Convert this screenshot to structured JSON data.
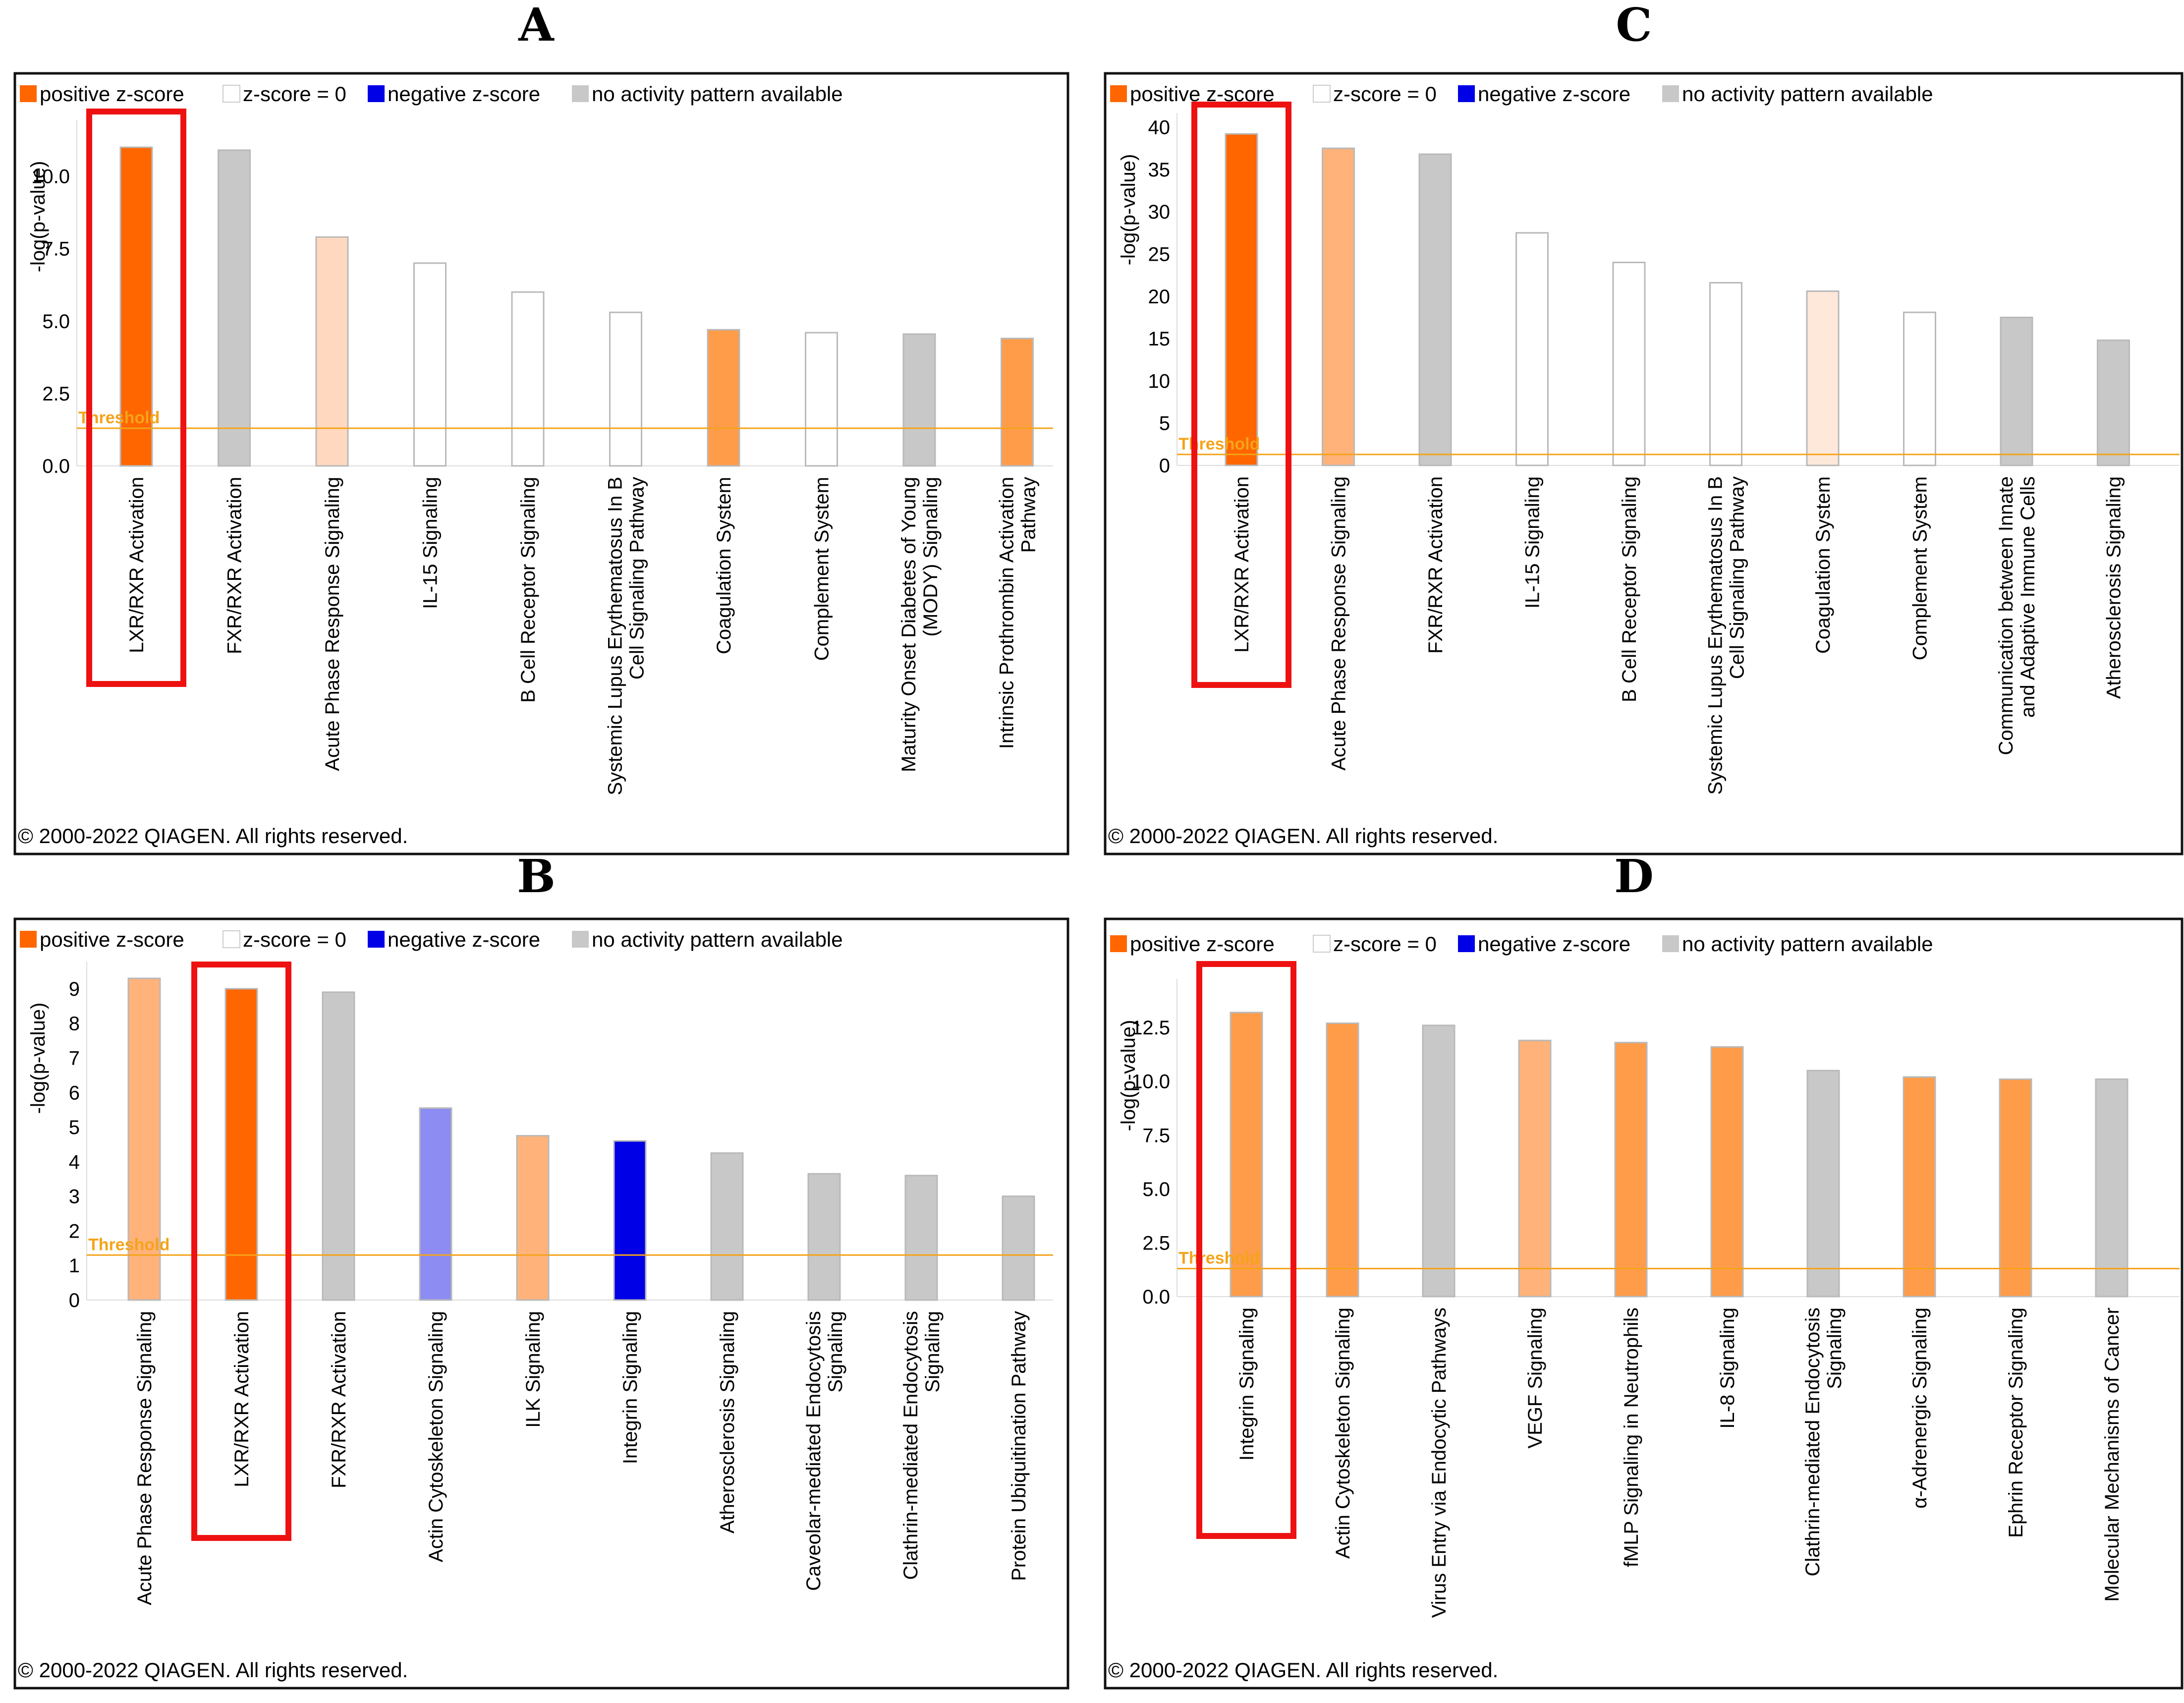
{
  "colors": {
    "positive_strong": "#ff6600",
    "positive_mid": "#ff9c4a",
    "positive_light": "#ffb27a",
    "positive_pale": "#ffd8bf",
    "positive_faint": "#fde8da",
    "neutral": "#ffffff",
    "gray": "#c8c8c8",
    "negative_strong": "#0000e6",
    "negative_light": "#8c8cf2",
    "threshold": "#f5a31a",
    "highlight_box": "#ee1111"
  },
  "legend": {
    "positive": "positive z-score",
    "zero": "z-score = 0",
    "negative": "negative z-score",
    "none": "no activity pattern available"
  },
  "threshold_label": "Threshold",
  "copyright": "© 2000-2022 QIAGEN. All rights reserved.",
  "ylabel": "-log(p-value)",
  "chart_data": [
    {
      "panel": "A",
      "type": "bar",
      "ylabel": "-log(p-value)",
      "yticks": [
        "0.0",
        "2.5",
        "5.0",
        "7.5",
        "10.0"
      ],
      "ylim": [
        0,
        11.6
      ],
      "threshold": 1.3,
      "highlight_index": 0,
      "categories": [
        [
          "LXR/RXR Activation"
        ],
        [
          "FXR/RXR Activation"
        ],
        [
          "Acute Phase Response Signaling"
        ],
        [
          "IL-15 Signaling"
        ],
        [
          "B Cell Receptor Signaling"
        ],
        [
          "Systemic Lupus Erythematosus In B",
          "Cell Signaling Pathway"
        ],
        [
          "Coagulation System"
        ],
        [
          "Complement System"
        ],
        [
          "Maturity Onset Diabetes of Young",
          "(MODY) Signaling"
        ],
        [
          "Intrinsic Prothrombin Activation",
          "Pathway"
        ]
      ],
      "values": [
        11.0,
        10.9,
        7.9,
        7.0,
        6.0,
        5.3,
        4.7,
        4.6,
        4.55,
        4.4
      ],
      "colors": [
        "positive_strong",
        "gray",
        "positive_pale",
        "neutral",
        "neutral",
        "neutral",
        "positive_mid",
        "neutral",
        "gray",
        "positive_mid"
      ]
    },
    {
      "panel": "B",
      "type": "bar",
      "ylabel": "-log(p-value)",
      "yticks": [
        "0",
        "1",
        "2",
        "3",
        "4",
        "5",
        "6",
        "7",
        "8",
        "9"
      ],
      "ylim": [
        0,
        9.5
      ],
      "threshold": 1.3,
      "highlight_index": 1,
      "categories": [
        [
          "Acute Phase Response Signaling"
        ],
        [
          "LXR/RXR Activation"
        ],
        [
          "FXR/RXR Activation"
        ],
        [
          "Actin Cytoskeleton Signaling"
        ],
        [
          "ILK Signaling"
        ],
        [
          "Integrin Signaling"
        ],
        [
          "Atherosclerosis Signaling"
        ],
        [
          "Caveolar-mediated Endocytosis",
          "Signaling"
        ],
        [
          "Clathrin-mediated Endocytosis",
          "Signaling"
        ],
        [
          "Protein Ubiquitination Pathway"
        ]
      ],
      "values": [
        9.3,
        9.0,
        8.9,
        5.55,
        4.75,
        4.6,
        4.25,
        3.65,
        3.6,
        3.0
      ],
      "colors": [
        "positive_light",
        "positive_strong",
        "gray",
        "negative_light",
        "positive_light",
        "negative_strong",
        "gray",
        "gray",
        "gray",
        "gray"
      ]
    },
    {
      "panel": "C",
      "type": "bar",
      "ylabel": "-log(p-value)",
      "yticks": [
        "0",
        "5",
        "10",
        "15",
        "20",
        "25",
        "30",
        "35",
        "40"
      ],
      "ylim": [
        0,
        40.5
      ],
      "threshold": 1.3,
      "highlight_index": 0,
      "categories": [
        [
          "LXR/RXR Activation"
        ],
        [
          "Acute Phase Response Signaling"
        ],
        [
          "FXR/RXR Activation"
        ],
        [
          "IL-15 Signaling"
        ],
        [
          "B Cell Receptor Signaling"
        ],
        [
          "Systemic Lupus Erythematosus In B",
          "Cell Signaling Pathway"
        ],
        [
          "Coagulation System"
        ],
        [
          "Complement System"
        ],
        [
          "Communication between Innate",
          "and Adaptive Immune Cells"
        ],
        [
          "Atherosclerosis Signaling"
        ]
      ],
      "values": [
        39.2,
        37.5,
        36.8,
        27.5,
        24.0,
        21.6,
        20.6,
        18.1,
        17.5,
        14.8
      ],
      "colors": [
        "positive_strong",
        "positive_light",
        "gray",
        "neutral",
        "neutral",
        "neutral",
        "positive_faint",
        "neutral",
        "gray",
        "gray"
      ]
    },
    {
      "panel": "D",
      "type": "bar",
      "ylabel": "-log(p-value)",
      "yticks": [
        "0.0",
        "2.5",
        "5.0",
        "7.5",
        "10.0",
        "12.5"
      ],
      "ylim": [
        0,
        14.3
      ],
      "threshold": 1.3,
      "highlight_index": 0,
      "categories": [
        [
          "Integrin Signaling"
        ],
        [
          "Actin Cytoskeleton Signaling"
        ],
        [
          "Virus Entry via Endocytic Pathways"
        ],
        [
          "VEGF Signaling"
        ],
        [
          "fMLP Signaling in Neutrophils"
        ],
        [
          "IL-8 Signaling"
        ],
        [
          "Clathrin-mediated Endocytosis",
          "Signaling"
        ],
        [
          "α-Adrenergic Signaling"
        ],
        [
          "Ephrin Receptor Signaling"
        ],
        [
          "Molecular Mechanisms of Cancer"
        ]
      ],
      "values": [
        13.2,
        12.7,
        12.6,
        11.9,
        11.8,
        11.6,
        10.5,
        10.2,
        10.1,
        10.1
      ],
      "colors": [
        "positive_mid",
        "positive_mid",
        "gray",
        "positive_light",
        "positive_mid",
        "positive_mid",
        "gray",
        "positive_mid",
        "positive_mid",
        "gray"
      ]
    }
  ]
}
